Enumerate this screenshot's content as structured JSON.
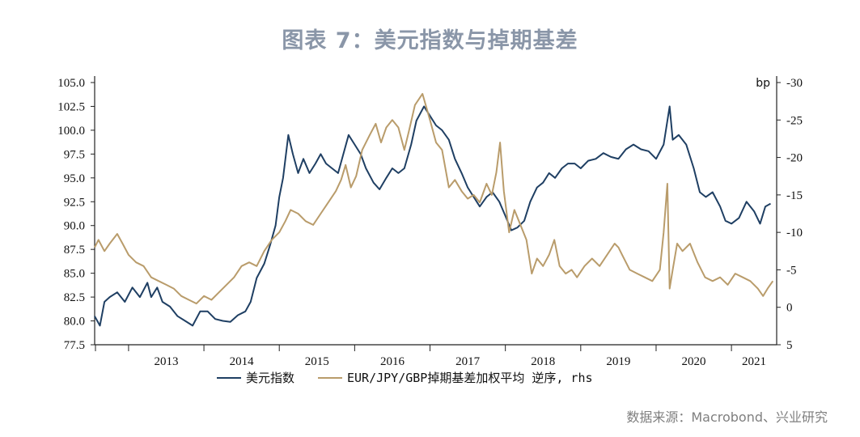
{
  "title": "图表 7：美元指数与掉期基差",
  "source": "数据来源：Macrobond、兴业研究",
  "colors": {
    "usd": "#1f3f63",
    "basis": "#b99c6b",
    "title": "#8a96a8",
    "axis": "#222222"
  },
  "chart_data": {
    "type": "line",
    "title": "图表 7：美元指数与掉期基差",
    "x_range": [
      2012.55,
      2021.6
    ],
    "years": [
      "2013",
      "2014",
      "2015",
      "2016",
      "2017",
      "2018",
      "2019",
      "2020",
      "2021"
    ],
    "y_left": {
      "ylim": [
        77.5,
        105.0
      ],
      "ticks": [
        "105.0",
        "102.5",
        "100.0",
        "97.5",
        "95.0",
        "92.5",
        "90.0",
        "87.5",
        "85.0",
        "82.5",
        "80.0",
        "77.5"
      ]
    },
    "y_right": {
      "label": "bp",
      "inverted": true,
      "ylim": [
        5,
        -30
      ],
      "ticks": [
        "-30",
        "-25",
        "-20",
        "-15",
        "-10",
        "-5",
        "0",
        "5"
      ]
    },
    "legend": [
      "美元指数",
      "EUR/JPY/GBP掉期基差加权平均 逆序, rhs"
    ],
    "grid": false,
    "series": [
      {
        "name": "美元指数",
        "axis": "left",
        "points": [
          [
            2012.55,
            80.5
          ],
          [
            2012.62,
            79.5
          ],
          [
            2012.68,
            82.0
          ],
          [
            2012.75,
            82.5
          ],
          [
            2012.85,
            83.0
          ],
          [
            2012.95,
            82.0
          ],
          [
            2013.05,
            83.5
          ],
          [
            2013.15,
            82.5
          ],
          [
            2013.25,
            84.0
          ],
          [
            2013.3,
            82.5
          ],
          [
            2013.38,
            83.5
          ],
          [
            2013.45,
            82.0
          ],
          [
            2013.55,
            81.5
          ],
          [
            2013.65,
            80.5
          ],
          [
            2013.75,
            80.0
          ],
          [
            2013.85,
            79.5
          ],
          [
            2013.95,
            81.0
          ],
          [
            2014.05,
            81.0
          ],
          [
            2014.15,
            80.2
          ],
          [
            2014.25,
            80.0
          ],
          [
            2014.35,
            79.9
          ],
          [
            2014.45,
            80.6
          ],
          [
            2014.55,
            81.0
          ],
          [
            2014.62,
            82.0
          ],
          [
            2014.7,
            84.5
          ],
          [
            2014.8,
            86.0
          ],
          [
            2014.88,
            88.0
          ],
          [
            2014.95,
            90.0
          ],
          [
            2015.0,
            93.0
          ],
          [
            2015.05,
            95.0
          ],
          [
            2015.12,
            99.5
          ],
          [
            2015.18,
            97.5
          ],
          [
            2015.25,
            95.5
          ],
          [
            2015.32,
            97.0
          ],
          [
            2015.4,
            95.5
          ],
          [
            2015.48,
            96.5
          ],
          [
            2015.55,
            97.5
          ],
          [
            2015.62,
            96.5
          ],
          [
            2015.7,
            96.0
          ],
          [
            2015.78,
            95.5
          ],
          [
            2015.85,
            97.5
          ],
          [
            2015.92,
            99.5
          ],
          [
            2016.0,
            98.5
          ],
          [
            2016.08,
            97.5
          ],
          [
            2016.15,
            96.0
          ],
          [
            2016.25,
            94.5
          ],
          [
            2016.33,
            93.8
          ],
          [
            2016.42,
            95.0
          ],
          [
            2016.5,
            96.0
          ],
          [
            2016.58,
            95.5
          ],
          [
            2016.66,
            96.0
          ],
          [
            2016.75,
            98.5
          ],
          [
            2016.82,
            101.0
          ],
          [
            2016.92,
            102.5
          ],
          [
            2017.0,
            101.5
          ],
          [
            2017.08,
            100.5
          ],
          [
            2017.16,
            100.0
          ],
          [
            2017.25,
            99.0
          ],
          [
            2017.33,
            97.0
          ],
          [
            2017.42,
            95.5
          ],
          [
            2017.5,
            94.0
          ],
          [
            2017.58,
            93.0
          ],
          [
            2017.66,
            92.0
          ],
          [
            2017.75,
            93.0
          ],
          [
            2017.83,
            93.5
          ],
          [
            2017.92,
            92.5
          ],
          [
            2018.0,
            91.0
          ],
          [
            2018.08,
            89.5
          ],
          [
            2018.16,
            89.8
          ],
          [
            2018.25,
            90.5
          ],
          [
            2018.33,
            92.5
          ],
          [
            2018.42,
            94.0
          ],
          [
            2018.5,
            94.5
          ],
          [
            2018.58,
            95.5
          ],
          [
            2018.66,
            95.0
          ],
          [
            2018.75,
            96.0
          ],
          [
            2018.83,
            96.5
          ],
          [
            2018.92,
            96.5
          ],
          [
            2019.0,
            96.0
          ],
          [
            2019.1,
            96.8
          ],
          [
            2019.2,
            97.0
          ],
          [
            2019.3,
            97.6
          ],
          [
            2019.4,
            97.2
          ],
          [
            2019.5,
            97.0
          ],
          [
            2019.6,
            98.0
          ],
          [
            2019.7,
            98.5
          ],
          [
            2019.8,
            98.0
          ],
          [
            2019.9,
            97.8
          ],
          [
            2020.0,
            97.0
          ],
          [
            2020.1,
            98.5
          ],
          [
            2020.18,
            102.5
          ],
          [
            2020.22,
            99.0
          ],
          [
            2020.3,
            99.5
          ],
          [
            2020.4,
            98.5
          ],
          [
            2020.5,
            96.0
          ],
          [
            2020.58,
            93.5
          ],
          [
            2020.66,
            93.0
          ],
          [
            2020.75,
            93.5
          ],
          [
            2020.85,
            92.0
          ],
          [
            2020.92,
            90.5
          ],
          [
            2021.0,
            90.2
          ],
          [
            2021.1,
            90.8
          ],
          [
            2021.2,
            92.5
          ],
          [
            2021.3,
            91.5
          ],
          [
            2021.38,
            90.2
          ],
          [
            2021.45,
            92.0
          ],
          [
            2021.52,
            92.3
          ]
        ]
      },
      {
        "name": "EUR/JPY/GBP掉期基差加权平均 逆序, rhs",
        "axis": "right",
        "points": [
          [
            2012.55,
            -8.0
          ],
          [
            2012.6,
            -9.0
          ],
          [
            2012.68,
            -7.5
          ],
          [
            2012.75,
            -8.5
          ],
          [
            2012.85,
            -9.8
          ],
          [
            2012.92,
            -8.5
          ],
          [
            2013.0,
            -7.0
          ],
          [
            2013.1,
            -6.0
          ],
          [
            2013.2,
            -5.5
          ],
          [
            2013.3,
            -4.0
          ],
          [
            2013.4,
            -3.5
          ],
          [
            2013.5,
            -3.0
          ],
          [
            2013.6,
            -2.5
          ],
          [
            2013.7,
            -1.5
          ],
          [
            2013.8,
            -1.0
          ],
          [
            2013.9,
            -0.5
          ],
          [
            2014.0,
            -1.5
          ],
          [
            2014.1,
            -1.0
          ],
          [
            2014.2,
            -2.0
          ],
          [
            2014.3,
            -3.0
          ],
          [
            2014.4,
            -4.0
          ],
          [
            2014.5,
            -5.5
          ],
          [
            2014.6,
            -6.0
          ],
          [
            2014.7,
            -5.5
          ],
          [
            2014.8,
            -7.5
          ],
          [
            2014.9,
            -9.0
          ],
          [
            2015.0,
            -10.0
          ],
          [
            2015.08,
            -11.5
          ],
          [
            2015.15,
            -13.0
          ],
          [
            2015.25,
            -12.5
          ],
          [
            2015.35,
            -11.5
          ],
          [
            2015.45,
            -11.0
          ],
          [
            2015.55,
            -12.5
          ],
          [
            2015.65,
            -14.0
          ],
          [
            2015.75,
            -15.5
          ],
          [
            2015.82,
            -17.0
          ],
          [
            2015.88,
            -19.0
          ],
          [
            2015.95,
            -16.0
          ],
          [
            2016.02,
            -17.5
          ],
          [
            2016.1,
            -21.0
          ],
          [
            2016.2,
            -23.0
          ],
          [
            2016.28,
            -24.5
          ],
          [
            2016.35,
            -22.0
          ],
          [
            2016.42,
            -24.0
          ],
          [
            2016.5,
            -25.0
          ],
          [
            2016.58,
            -24.0
          ],
          [
            2016.66,
            -21.0
          ],
          [
            2016.72,
            -23.5
          ],
          [
            2016.8,
            -27.0
          ],
          [
            2016.9,
            -28.5
          ],
          [
            2017.0,
            -25.0
          ],
          [
            2017.08,
            -22.0
          ],
          [
            2017.16,
            -21.0
          ],
          [
            2017.25,
            -16.0
          ],
          [
            2017.33,
            -17.0
          ],
          [
            2017.42,
            -15.5
          ],
          [
            2017.5,
            -14.5
          ],
          [
            2017.58,
            -15.0
          ],
          [
            2017.66,
            -14.0
          ],
          [
            2017.75,
            -16.5
          ],
          [
            2017.82,
            -15.0
          ],
          [
            2017.88,
            -18.0
          ],
          [
            2017.93,
            -22.0
          ],
          [
            2017.98,
            -15.5
          ],
          [
            2018.05,
            -10.0
          ],
          [
            2018.12,
            -13.0
          ],
          [
            2018.2,
            -11.0
          ],
          [
            2018.28,
            -9.0
          ],
          [
            2018.35,
            -4.5
          ],
          [
            2018.42,
            -6.5
          ],
          [
            2018.5,
            -5.5
          ],
          [
            2018.58,
            -7.0
          ],
          [
            2018.65,
            -9.0
          ],
          [
            2018.72,
            -5.5
          ],
          [
            2018.8,
            -4.5
          ],
          [
            2018.88,
            -5.0
          ],
          [
            2018.95,
            -4.0
          ],
          [
            2019.05,
            -5.5
          ],
          [
            2019.15,
            -6.5
          ],
          [
            2019.25,
            -5.5
          ],
          [
            2019.35,
            -7.0
          ],
          [
            2019.45,
            -8.5
          ],
          [
            2019.5,
            -8.0
          ],
          [
            2019.55,
            -7.0
          ],
          [
            2019.65,
            -5.0
          ],
          [
            2019.75,
            -4.5
          ],
          [
            2019.85,
            -4.0
          ],
          [
            2019.95,
            -3.5
          ],
          [
            2020.05,
            -5.0
          ],
          [
            2020.1,
            -10.0
          ],
          [
            2020.15,
            -16.5
          ],
          [
            2020.18,
            -2.5
          ],
          [
            2020.22,
            -5.0
          ],
          [
            2020.28,
            -8.5
          ],
          [
            2020.35,
            -7.5
          ],
          [
            2020.45,
            -8.5
          ],
          [
            2020.55,
            -6.0
          ],
          [
            2020.65,
            -4.0
          ],
          [
            2020.75,
            -3.5
          ],
          [
            2020.85,
            -4.0
          ],
          [
            2020.95,
            -3.0
          ],
          [
            2021.05,
            -4.5
          ],
          [
            2021.15,
            -4.0
          ],
          [
            2021.25,
            -3.5
          ],
          [
            2021.35,
            -2.5
          ],
          [
            2021.42,
            -1.5
          ],
          [
            2021.48,
            -2.5
          ],
          [
            2021.55,
            -3.5
          ]
        ]
      }
    ]
  }
}
